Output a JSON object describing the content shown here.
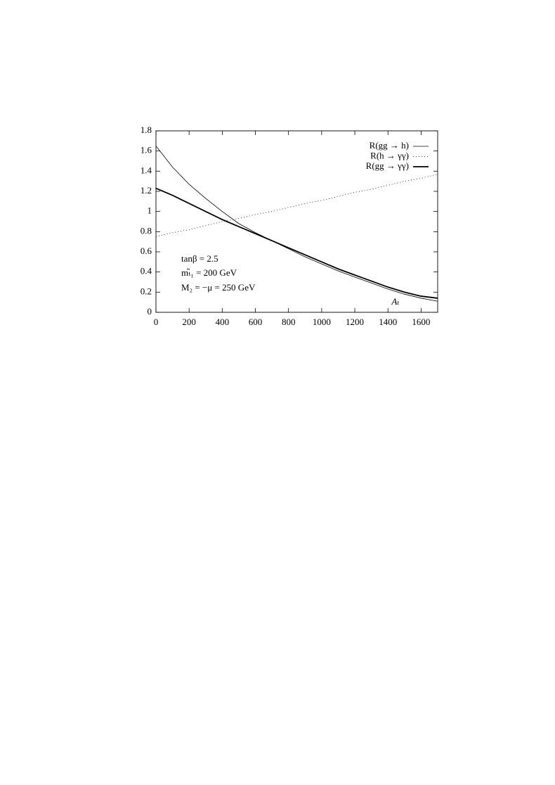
{
  "chart_data": {
    "type": "line",
    "x": [
      0,
      100,
      200,
      300,
      400,
      500,
      600,
      700,
      800,
      900,
      1000,
      1100,
      1200,
      1300,
      1400,
      1500,
      1600,
      1700
    ],
    "series": [
      {
        "name": "R(gg → h)",
        "color": "#000000",
        "values": [
          1.65,
          1.44,
          1.27,
          1.13,
          1.0,
          0.88,
          0.79,
          0.71,
          0.63,
          0.55,
          0.48,
          0.41,
          0.35,
          0.29,
          0.23,
          0.18,
          0.14,
          0.11
        ]
      },
      {
        "name": "R(h → γγ)",
        "color": "#000000",
        "values": [
          0.75,
          0.79,
          0.82,
          0.86,
          0.9,
          0.93,
          0.97,
          1.0,
          1.04,
          1.08,
          1.11,
          1.15,
          1.19,
          1.22,
          1.26,
          1.3,
          1.33,
          1.37
        ]
      },
      {
        "name": "R(gg → γγ)",
        "color": "#000000",
        "values": [
          1.23,
          1.16,
          1.08,
          1.0,
          0.92,
          0.85,
          0.78,
          0.71,
          0.64,
          0.57,
          0.5,
          0.43,
          0.37,
          0.31,
          0.25,
          0.2,
          0.16,
          0.14
        ]
      }
    ],
    "xlim": [
      0,
      1700
    ],
    "xticks": [
      0,
      200,
      400,
      600,
      800,
      1000,
      1200,
      1400,
      1600
    ],
    "ylim": [
      0,
      1.8
    ],
    "yticks": [
      0,
      0.2,
      0.4,
      0.6,
      0.8,
      1,
      1.2,
      1.4,
      1.6,
      1.8
    ],
    "x_label": "Aₜ",
    "annotations": [
      "tanβ = 2.5",
      "mₜ̃₁ = 200 GeV",
      "M₂ = −μ = 250 GeV"
    ],
    "legend": "upper right"
  }
}
